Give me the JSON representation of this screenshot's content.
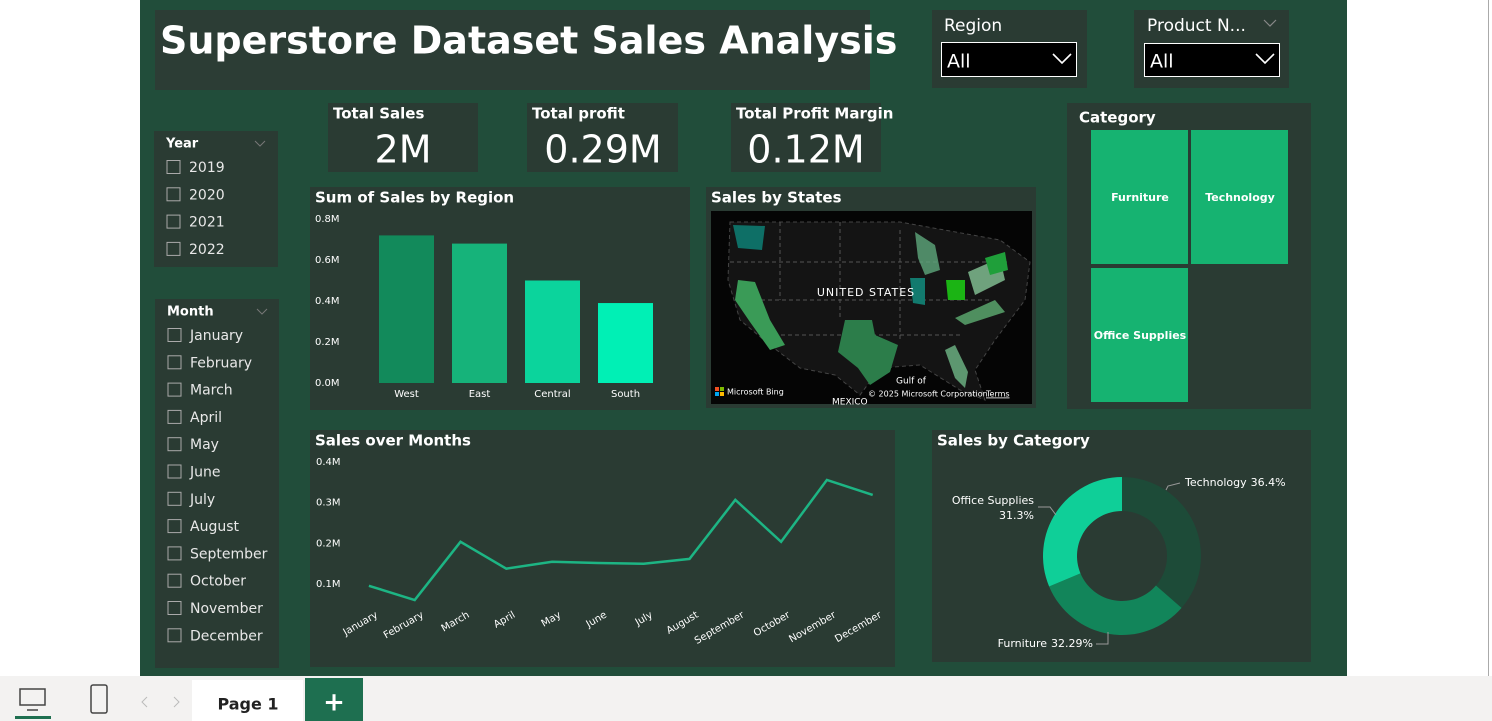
{
  "report": {
    "title": "Superstore Dataset Sales Analysis",
    "dropdowns": [
      {
        "title": "Region",
        "selection": "All"
      },
      {
        "title": "Product N...",
        "selection": "All"
      }
    ],
    "kpis": [
      {
        "title": "Total Sales",
        "value": "2M"
      },
      {
        "title": "Total profit",
        "value": "0.29M"
      },
      {
        "title": "Total Profit Margin",
        "value": "0.12M"
      }
    ],
    "year_slicer": {
      "title": "Year",
      "items": [
        "2019",
        "2020",
        "2021",
        "2022"
      ]
    },
    "month_slicer": {
      "title": "Month",
      "items": [
        "January",
        "February",
        "March",
        "April",
        "May",
        "June",
        "July",
        "August",
        "September",
        "October",
        "November",
        "December"
      ]
    },
    "map": {
      "title": "Sales by States",
      "country": "UNITED STATES",
      "gulf": "Gulf of",
      "mexico": "MEXICO",
      "provider": "Microsoft Bing",
      "copyright": "© 2025 Microsoft Corporation",
      "terms": "Terms"
    },
    "treemap": {
      "title": "Category",
      "items": [
        "Furniture",
        "Technology",
        "Office Supplies"
      ]
    },
    "tabs": {
      "page": "Page 1",
      "add": "+"
    }
  },
  "chart_data": [
    {
      "type": "bar",
      "title": "Sum of Sales by Region",
      "categories": [
        "West",
        "East",
        "Central",
        "South"
      ],
      "values": [
        720000,
        680000,
        500000,
        390000
      ],
      "colors": [
        "#128a5b",
        "#16b37a",
        "#0bd49c",
        "#00f0b5"
      ],
      "ylim": [
        0,
        800000
      ],
      "yticks": [
        {
          "value": 0,
          "label": "0.0M"
        },
        {
          "value": 200000,
          "label": "0.2M"
        },
        {
          "value": 400000,
          "label": "0.4M"
        },
        {
          "value": 600000,
          "label": "0.6M"
        },
        {
          "value": 800000,
          "label": "0.8M"
        }
      ],
      "grid": false
    },
    {
      "type": "line",
      "title": "Sales over Months",
      "categories": [
        "January",
        "February",
        "March",
        "April",
        "May",
        "June",
        "July",
        "August",
        "September",
        "October",
        "November",
        "December"
      ],
      "series": [
        {
          "name": "Sales",
          "color": "#1db584",
          "values": [
            96000,
            61000,
            204000,
            138000,
            155000,
            152000,
            150000,
            162000,
            307000,
            204000,
            356000,
            319000
          ]
        }
      ],
      "ylim": [
        50000,
        400000
      ],
      "yticks": [
        {
          "value": 100000,
          "label": "0.1M"
        },
        {
          "value": 200000,
          "label": "0.2M"
        },
        {
          "value": 300000,
          "label": "0.3M"
        },
        {
          "value": 400000,
          "label": "0.4M"
        }
      ],
      "grid": false
    },
    {
      "type": "pie",
      "title": "Sales by Category",
      "categories": [
        "Technology",
        "Furniture",
        "Office Supplies"
      ],
      "values": [
        36.4,
        32.29,
        31.3
      ],
      "value_labels": [
        "36.4%",
        "32.29%",
        "31.3%"
      ],
      "colors": [
        "#1d4b38",
        "#12855a",
        "#0fcf98"
      ],
      "donut": true
    }
  ]
}
